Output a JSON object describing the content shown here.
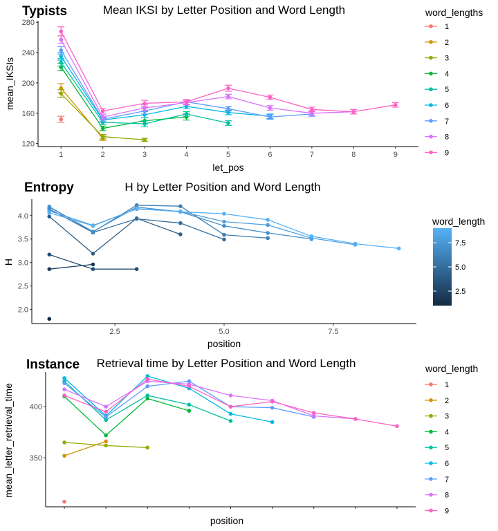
{
  "palette": [
    "#F8766D",
    "#D39200",
    "#93AA00",
    "#00BA38",
    "#00C19F",
    "#00B9E3",
    "#619CFF",
    "#DB72FB",
    "#FF61C3"
  ],
  "chart_data": [
    {
      "type": "line",
      "tag": "Typists",
      "title": "Mean IKSI by Letter Position and Word Length",
      "xlabel": "let_pos",
      "ylabel": "mean_IKSIs",
      "xlim": [
        0.45,
        9.55
      ],
      "ylim": [
        116,
        282
      ],
      "xticks": [
        1,
        2,
        3,
        4,
        5,
        6,
        7,
        8,
        9
      ],
      "yticks": [
        120,
        160,
        200,
        240,
        280
      ],
      "legend_title": "word_lengths",
      "legend_position": "right",
      "error_bars": true,
      "series": [
        {
          "name": "1",
          "x": [
            1
          ],
          "y": [
            152
          ],
          "err": [
            4
          ]
        },
        {
          "name": "2",
          "x": [
            1,
            2
          ],
          "y": [
            193,
            127
          ],
          "err": [
            6,
            3
          ]
        },
        {
          "name": "3",
          "x": [
            1,
            2,
            3
          ],
          "y": [
            186,
            129,
            125
          ],
          "err": [
            5,
            3,
            2
          ]
        },
        {
          "name": "4",
          "x": [
            1,
            2,
            3,
            4
          ],
          "y": [
            221,
            140,
            150,
            155
          ],
          "err": [
            5,
            3,
            4,
            4
          ]
        },
        {
          "name": "5",
          "x": [
            1,
            2,
            3,
            4,
            5
          ],
          "y": [
            227,
            148,
            146,
            159,
            147
          ],
          "err": [
            5,
            3,
            4,
            3,
            3
          ]
        },
        {
          "name": "6",
          "x": [
            1,
            2,
            3,
            4,
            5,
            6
          ],
          "y": [
            235,
            151,
            158,
            169,
            161,
            156
          ],
          "err": [
            5,
            3,
            4,
            3,
            3,
            3
          ]
        },
        {
          "name": "7",
          "x": [
            1,
            2,
            3,
            4,
            5,
            6,
            7
          ],
          "y": [
            243,
            152,
            163,
            175,
            166,
            155,
            159
          ],
          "err": [
            5,
            3,
            4,
            3,
            3,
            3,
            3
          ]
        },
        {
          "name": "8",
          "x": [
            1,
            2,
            3,
            4,
            5,
            6,
            7,
            8
          ],
          "y": [
            257,
            155,
            167,
            174,
            182,
            167,
            160,
            162
          ],
          "err": [
            5,
            3,
            4,
            3,
            3,
            3,
            3,
            3
          ]
        },
        {
          "name": "9",
          "x": [
            1,
            2,
            3,
            4,
            5,
            6,
            7,
            8,
            9
          ],
          "y": [
            268,
            163,
            173,
            175,
            193,
            181,
            165,
            162,
            171
          ],
          "err": [
            6,
            3,
            4,
            3,
            4,
            3,
            3,
            3,
            3
          ]
        }
      ]
    },
    {
      "type": "line",
      "tag": "Entropy",
      "title": "H by Letter Position and Word Length",
      "xlabel": "position",
      "ylabel": "H",
      "xlim": [
        0.6,
        9.4
      ],
      "ylim": [
        1.7,
        4.35
      ],
      "xticks": [
        2.5,
        5.0,
        7.5
      ],
      "xticklabels": [
        "2.5",
        "5.0",
        "7.5"
      ],
      "yticks": [
        2.0,
        2.5,
        3.0,
        3.5,
        4.0
      ],
      "yticklabels": [
        "2.0",
        "2.5",
        "3.0",
        "3.5",
        "4.0"
      ],
      "legend_title": "word_length",
      "legend_position": "right",
      "colorbar": {
        "low": "#132B43",
        "high": "#56B1F7",
        "min": 1,
        "max": 9,
        "ticks": [
          2.5,
          5.0,
          7.5
        ],
        "ticklabels": [
          "2.5",
          "5.0",
          "7.5"
        ]
      },
      "series": [
        {
          "word_length": 1,
          "x": [
            1
          ],
          "y": [
            1.8
          ]
        },
        {
          "word_length": 2,
          "x": [
            1,
            2
          ],
          "y": [
            2.86,
            2.96
          ]
        },
        {
          "word_length": 3,
          "x": [
            1,
            2,
            3
          ],
          "y": [
            3.17,
            2.86,
            2.86
          ]
        },
        {
          "word_length": 4,
          "x": [
            1,
            2,
            3,
            4
          ],
          "y": [
            3.98,
            3.19,
            3.94,
            3.6
          ]
        },
        {
          "word_length": 5,
          "x": [
            1,
            2,
            3,
            4,
            5
          ],
          "y": [
            4.14,
            3.64,
            3.93,
            3.84,
            3.49
          ]
        },
        {
          "word_length": 6,
          "x": [
            1,
            2,
            3,
            4,
            5,
            6
          ],
          "y": [
            4.19,
            3.65,
            4.22,
            4.2,
            3.59,
            3.52
          ]
        },
        {
          "word_length": 7,
          "x": [
            1,
            2,
            3,
            4,
            5,
            6,
            7
          ],
          "y": [
            4.18,
            3.66,
            4.18,
            4.08,
            3.78,
            3.63,
            3.5
          ]
        },
        {
          "word_length": 8,
          "x": [
            1,
            2,
            3,
            4,
            5,
            6,
            7,
            8
          ],
          "y": [
            4.1,
            3.79,
            4.14,
            4.09,
            3.87,
            3.8,
            3.52,
            3.38
          ]
        },
        {
          "word_length": 9,
          "x": [
            1,
            2,
            3,
            4,
            5,
            6,
            7,
            8,
            9
          ],
          "y": [
            4.06,
            3.78,
            4.15,
            4.08,
            4.04,
            3.91,
            3.56,
            3.4,
            3.3
          ]
        }
      ]
    },
    {
      "type": "line",
      "tag": "Instance",
      "title": "Retrieval time by Letter Position and Word Length",
      "xlabel": "position",
      "ylabel": "mean_letter_retrieval_time",
      "xlim": [
        0.55,
        9.45
      ],
      "ylim": [
        302,
        434
      ],
      "xticks": [
        1,
        2,
        3,
        4,
        5,
        6,
        7,
        8,
        9
      ],
      "xticklabels": [
        "",
        "",
        "",
        "",
        "",
        "",
        "",
        "",
        ""
      ],
      "yticks": [
        350,
        400
      ],
      "legend_title": "word_length",
      "legend_position": "right",
      "series": [
        {
          "name": "1",
          "x": [
            1
          ],
          "y": [
            307
          ]
        },
        {
          "name": "2",
          "x": [
            1,
            2
          ],
          "y": [
            352,
            366
          ]
        },
        {
          "name": "3",
          "x": [
            1,
            2,
            3
          ],
          "y": [
            365,
            362,
            360
          ]
        },
        {
          "name": "4",
          "x": [
            1,
            2,
            3,
            4
          ],
          "y": [
            410,
            372,
            408,
            396
          ]
        },
        {
          "name": "5",
          "x": [
            1,
            2,
            3,
            4,
            5
          ],
          "y": [
            425,
            387,
            411,
            402,
            386
          ]
        },
        {
          "name": "6",
          "x": [
            1,
            2,
            3,
            4,
            5,
            6
          ],
          "y": [
            428,
            391,
            430,
            418,
            393,
            385
          ]
        },
        {
          "name": "7",
          "x": [
            1,
            2,
            3,
            4,
            5,
            6,
            7
          ],
          "y": [
            423,
            390,
            420,
            425,
            400,
            399,
            390
          ]
        },
        {
          "name": "8",
          "x": [
            1,
            2,
            3,
            4,
            5,
            6,
            7,
            8
          ],
          "y": [
            417,
            400,
            425,
            422,
            411,
            406,
            391,
            388
          ]
        },
        {
          "name": "9",
          "x": [
            1,
            2,
            3,
            4,
            5,
            6,
            7,
            8,
            9
          ],
          "y": [
            411,
            395,
            427,
            420,
            400,
            405,
            394,
            388,
            381
          ]
        }
      ]
    }
  ]
}
